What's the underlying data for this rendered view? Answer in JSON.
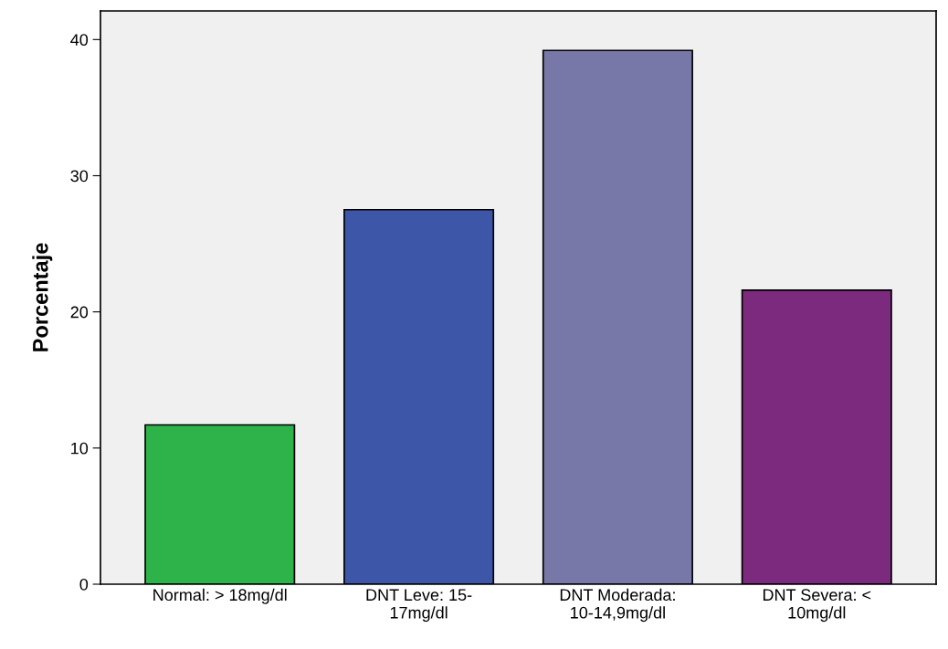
{
  "chart_data": {
    "type": "bar",
    "ylabel": "Porcentaje",
    "categories": [
      "Normal: > 18mg/dl",
      "DNT Leve: 15-\n17mg/dl",
      "DNT Moderada:\n10-14,9mg/dl",
      "DNT Severa: <\n10mg/dl"
    ],
    "values": [
      11.7,
      27.5,
      39.2,
      21.6
    ],
    "colors": [
      "#2db34a",
      "#3d56a8",
      "#7878a8",
      "#7b2a7e"
    ],
    "ylim": [
      0,
      42.1
    ],
    "yticks": [
      0,
      10,
      20,
      30,
      40
    ],
    "grid": false
  }
}
